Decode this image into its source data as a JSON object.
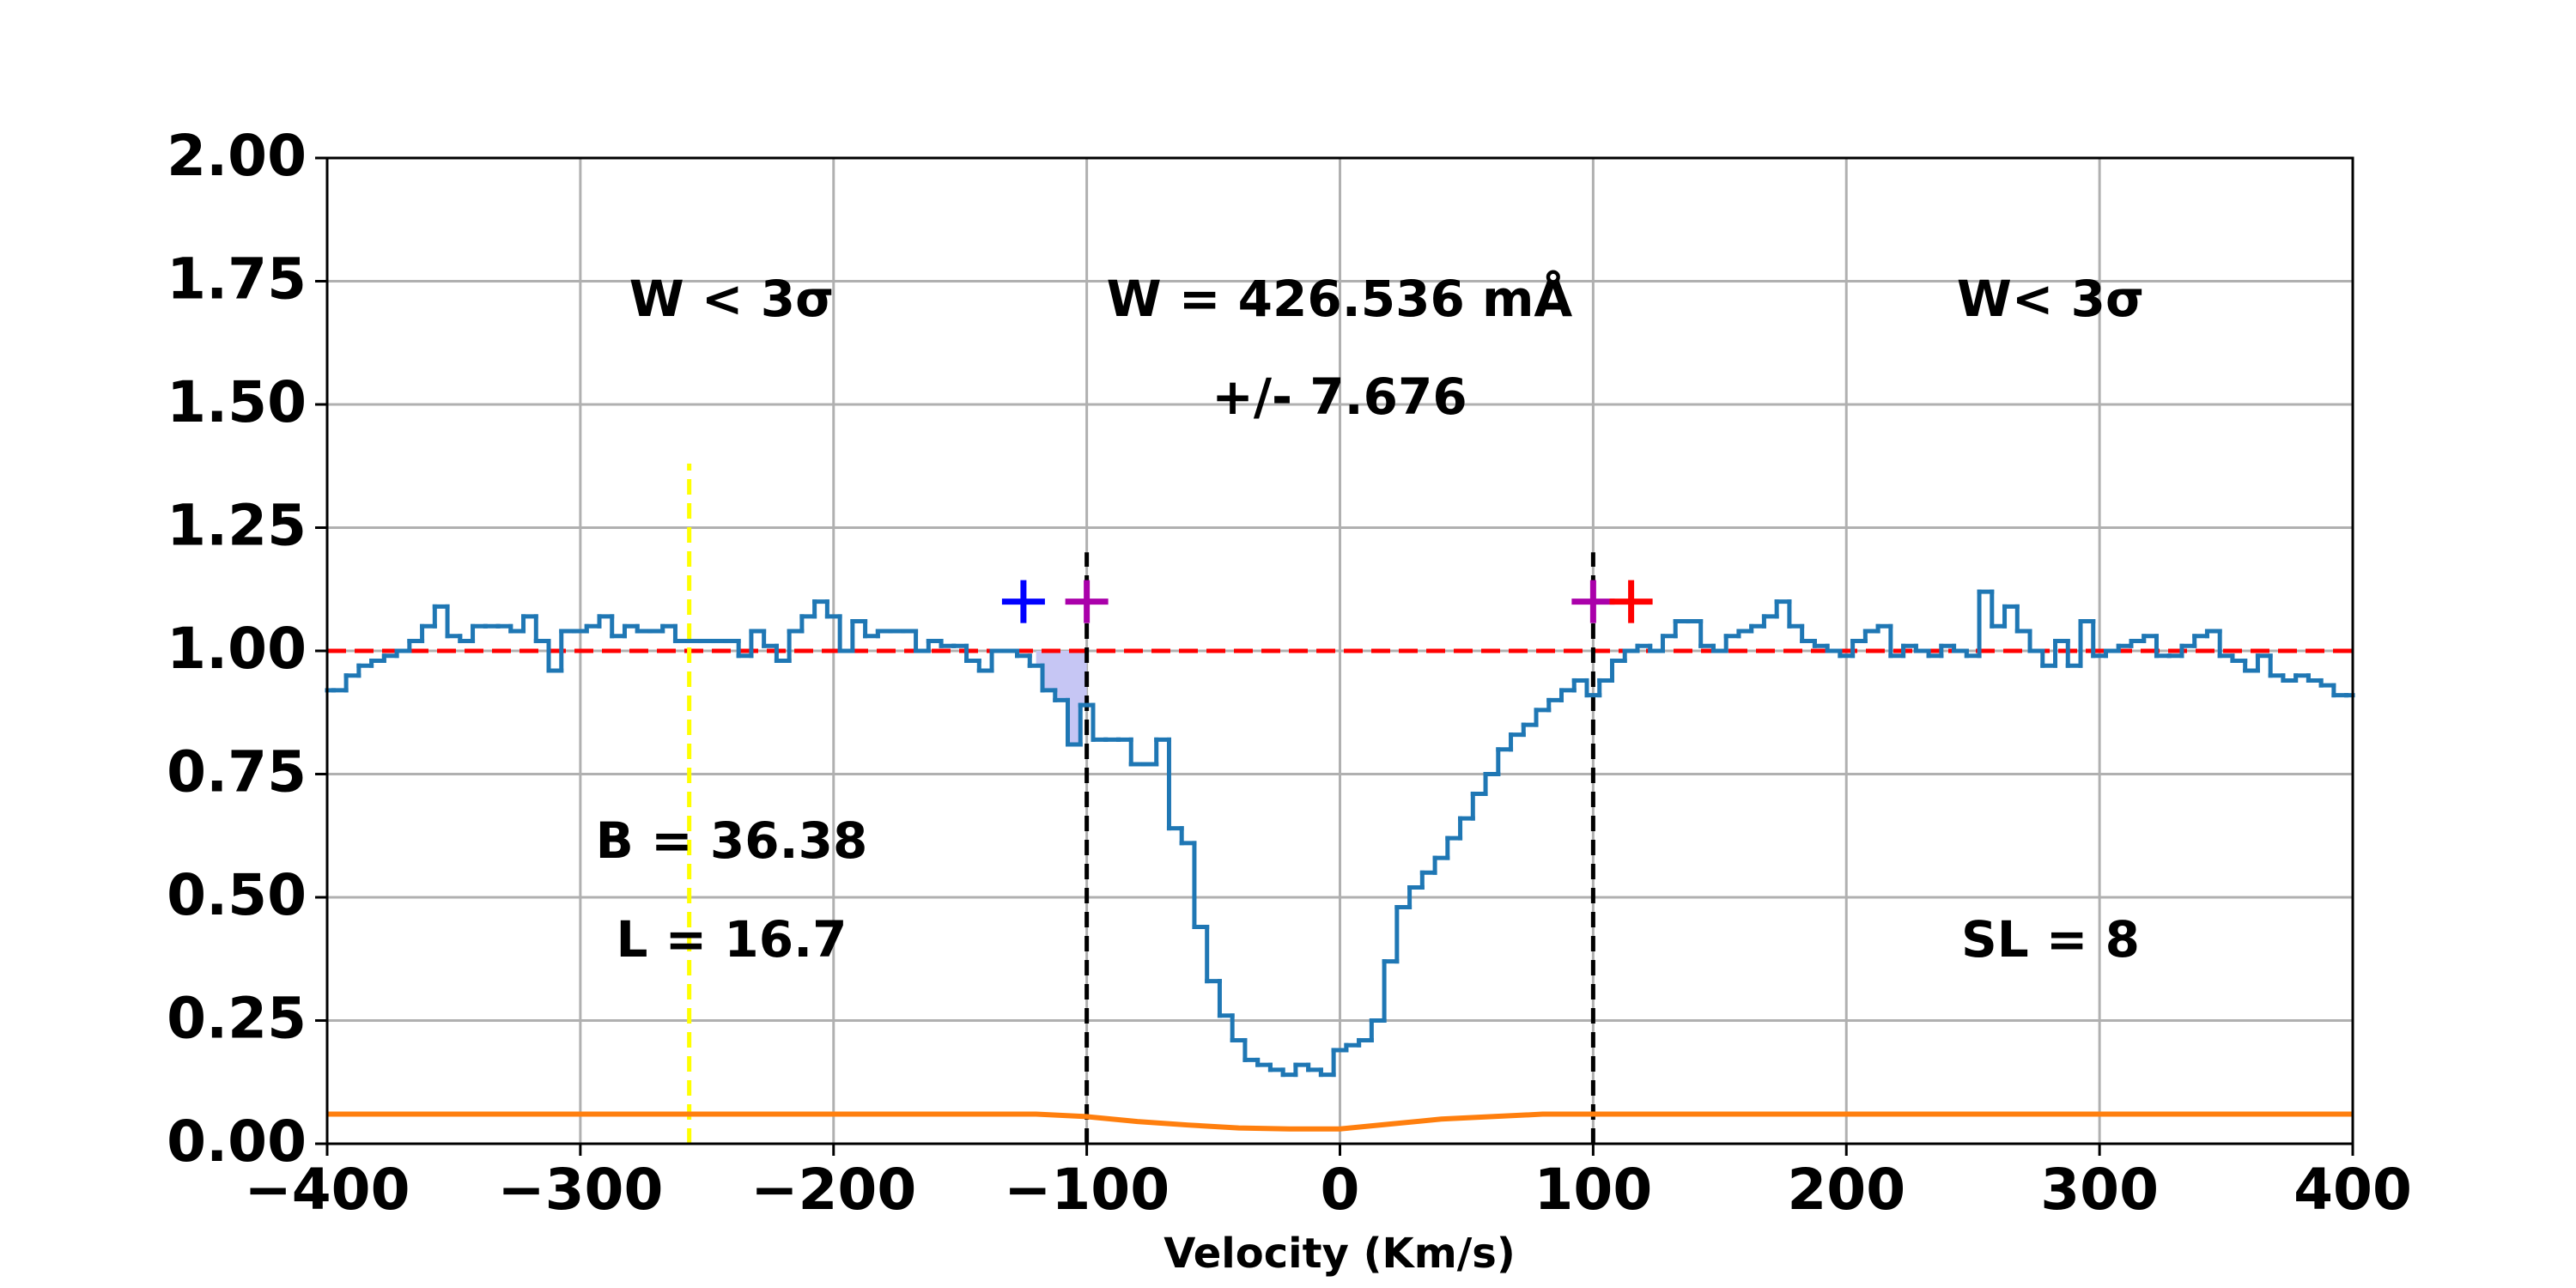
{
  "chart_data": {
    "type": "step",
    "xlabel": "Velocity (Km/s)",
    "xlim": [
      -400,
      400
    ],
    "ylim": [
      0,
      2
    ],
    "xticks": [
      {
        "value": -400,
        "label": "−400"
      },
      {
        "value": -300,
        "label": "−300"
      },
      {
        "value": -200,
        "label": "−200"
      },
      {
        "value": -100,
        "label": "−100"
      },
      0,
      100,
      200,
      300,
      400
    ],
    "yticks": [
      {
        "value": 0,
        "label": "0.00"
      },
      {
        "value": 0.25,
        "label": "0.25"
      },
      {
        "value": 0.5,
        "label": "0.50"
      },
      {
        "value": 0.75,
        "label": "0.75"
      },
      {
        "value": 1,
        "label": "1.00"
      },
      {
        "value": 1.25,
        "label": "1.25"
      },
      {
        "value": 1.5,
        "label": "1.50"
      },
      {
        "value": 1.75,
        "label": "1.75"
      },
      {
        "value": 2,
        "label": "2.00"
      }
    ],
    "grid": true,
    "series": [
      {
        "color": "#1f77b4",
        "x": [
          -400,
          -395,
          -390,
          -385,
          -380,
          -375,
          -370,
          -365,
          -360,
          -355,
          -350,
          -345,
          -340,
          -335,
          -330,
          -325,
          -320,
          -315,
          -310,
          -305,
          -300,
          -295,
          -290,
          -285,
          -280,
          -275,
          -270,
          -265,
          -260,
          -255,
          -250,
          -245,
          -240,
          -235,
          -230,
          -225,
          -220,
          -215,
          -210,
          -205,
          -200,
          -195,
          -190,
          -185,
          -180,
          -175,
          -170,
          -165,
          -160,
          -155,
          -150,
          -145,
          -140,
          -135,
          -130,
          -125,
          -120,
          -115,
          -110,
          -105,
          -100,
          -95,
          -90,
          -85,
          -80,
          -75,
          -70,
          -65,
          -60,
          -55,
          -50,
          -45,
          -40,
          -35,
          -30,
          -25,
          -20,
          -15,
          -10,
          -5,
          0,
          5,
          10,
          15,
          20,
          25,
          30,
          35,
          40,
          45,
          50,
          55,
          60,
          65,
          70,
          75,
          80,
          85,
          90,
          95,
          100,
          105,
          110,
          115,
          120,
          125,
          130,
          135,
          140,
          145,
          150,
          155,
          160,
          165,
          170,
          175,
          180,
          185,
          190,
          195,
          200,
          205,
          210,
          215,
          220,
          225,
          230,
          235,
          240,
          245,
          250,
          255,
          260,
          265,
          270,
          275,
          280,
          285,
          290,
          295,
          300,
          305,
          310,
          315,
          320,
          325,
          330,
          335,
          340,
          345,
          350,
          355,
          360,
          365,
          370,
          375,
          380,
          385,
          390,
          395,
          400
        ],
        "values": [
          0.92,
          0.92,
          0.95,
          0.97,
          0.98,
          0.99,
          1.0,
          1.02,
          1.05,
          1.09,
          1.03,
          1.02,
          1.05,
          1.05,
          1.05,
          1.04,
          1.07,
          1.02,
          0.96,
          1.04,
          1.04,
          1.05,
          1.07,
          1.03,
          1.05,
          1.04,
          1.04,
          1.05,
          1.02,
          1.02,
          1.02,
          1.02,
          1.02,
          0.99,
          1.04,
          1.01,
          0.98,
          1.04,
          1.07,
          1.1,
          1.07,
          1.0,
          1.06,
          1.03,
          1.04,
          1.04,
          1.04,
          1.0,
          1.02,
          1.01,
          1.01,
          0.98,
          0.96,
          1.0,
          1.0,
          0.99,
          0.97,
          0.92,
          0.9,
          0.81,
          0.89,
          0.82,
          0.82,
          0.82,
          0.77,
          0.77,
          0.82,
          0.64,
          0.61,
          0.44,
          0.33,
          0.26,
          0.21,
          0.17,
          0.16,
          0.15,
          0.14,
          0.16,
          0.15,
          0.14,
          0.19,
          0.2,
          0.21,
          0.25,
          0.37,
          0.48,
          0.52,
          0.55,
          0.58,
          0.62,
          0.66,
          0.71,
          0.75,
          0.8,
          0.83,
          0.85,
          0.88,
          0.9,
          0.92,
          0.94,
          0.91,
          0.94,
          0.98,
          1.0,
          1.01,
          1.0,
          1.03,
          1.06,
          1.06,
          1.01,
          1.0,
          1.03,
          1.04,
          1.05,
          1.07,
          1.1,
          1.05,
          1.02,
          1.01,
          1.0,
          0.99,
          1.02,
          1.04,
          1.05,
          0.99,
          1.01,
          1.0,
          0.99,
          1.01,
          1.0,
          0.99,
          1.12,
          1.05,
          1.09,
          1.04,
          1.0,
          0.97,
          1.02,
          0.97,
          1.06,
          0.99,
          1.0,
          1.01,
          1.02,
          1.03,
          0.99,
          0.99,
          1.01,
          1.03,
          1.04,
          0.99,
          0.98,
          0.96,
          0.99,
          0.95,
          0.94,
          0.95,
          0.94,
          0.93,
          0.91,
          0.91
        ]
      },
      {
        "color": "#ff7f0e",
        "x": [
          -400,
          -380,
          -360,
          -340,
          -320,
          -300,
          -280,
          -260,
          -240,
          -220,
          -200,
          -180,
          -160,
          -140,
          -120,
          -100,
          -80,
          -60,
          -40,
          -20,
          0,
          20,
          40,
          60,
          80,
          100,
          120,
          140,
          160,
          180,
          200,
          220,
          240,
          260,
          280,
          300,
          320,
          340,
          360,
          380,
          400
        ],
        "values": [
          0.06,
          0.06,
          0.06,
          0.06,
          0.06,
          0.06,
          0.06,
          0.06,
          0.06,
          0.06,
          0.06,
          0.06,
          0.06,
          0.06,
          0.06,
          0.055,
          0.045,
          0.038,
          0.032,
          0.03,
          0.03,
          0.04,
          0.05,
          0.055,
          0.06,
          0.06,
          0.06,
          0.06,
          0.06,
          0.06,
          0.06,
          0.06,
          0.06,
          0.06,
          0.06,
          0.06,
          0.06,
          0.06,
          0.06,
          0.06,
          0.06
        ]
      }
    ],
    "continuum": {
      "y": 1,
      "color": "#ff0000"
    },
    "shade": {
      "xrange": [
        -120,
        -100
      ],
      "color": "#c6c6f4"
    },
    "vlines": [
      {
        "x": -257,
        "yrange": [
          0,
          1.38
        ],
        "color": "#ffff00"
      },
      {
        "x": -100,
        "yrange": [
          0,
          1.2
        ],
        "color": "#000000"
      },
      {
        "x": 100,
        "yrange": [
          0,
          1.2
        ],
        "color": "#000000"
      }
    ],
    "markers": [
      {
        "x": -125,
        "y": 1.1,
        "color": "#0000ff"
      },
      {
        "x": -100,
        "y": 1.1,
        "color": "#aa00aa"
      },
      {
        "x": 100,
        "y": 1.1,
        "color": "#aa00aa"
      },
      {
        "x": 115,
        "y": 1.1,
        "color": "#ff0000"
      }
    ],
    "annotations": [
      "W < 3σ",
      "W = 426.536 mÅ",
      "+/- 7.676",
      "W< 3σ",
      "B = 36.38",
      "L = 16.7",
      "SL = 8"
    ]
  }
}
